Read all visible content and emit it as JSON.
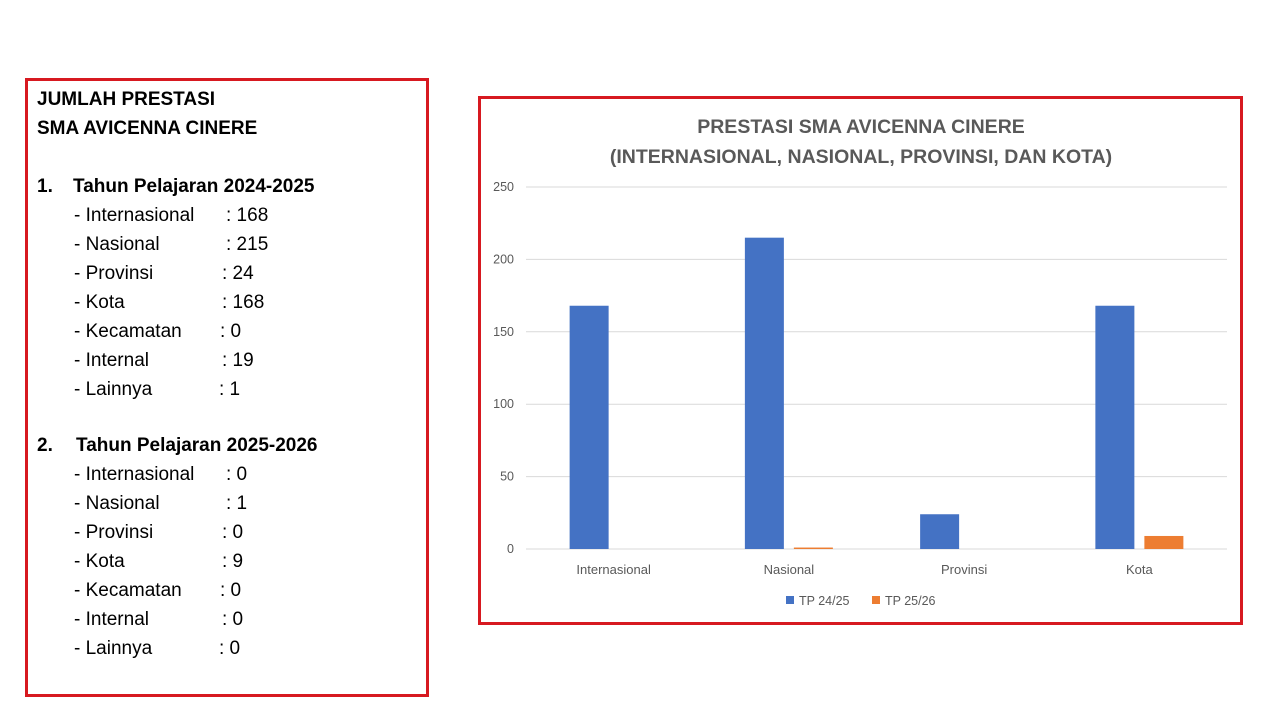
{
  "summary": {
    "title_line1": "JUMLAH PRESTASI",
    "title_line2": "SMA AVICENNA CINERE",
    "sections": [
      {
        "number": "1.",
        "title": "Tahun Pelajaran 2024-2025",
        "items": [
          {
            "label": "- Internasional",
            "value": ": 168"
          },
          {
            "label": "- Nasional",
            "value": ": 215"
          },
          {
            "label": "- Provinsi",
            "value": ": 24"
          },
          {
            "label": "- Kota",
            "value": ": 168"
          },
          {
            "label": "- Kecamatan",
            "value": ": 0"
          },
          {
            "label": "- Internal",
            "value": ": 19"
          },
          {
            "label": "- Lainnya",
            "value": ": 1"
          }
        ]
      },
      {
        "number": "2.",
        "title": "Tahun Pelajaran 2025-2026",
        "items": [
          {
            "label": "- Internasional",
            "value": ": 0"
          },
          {
            "label": "- Nasional",
            "value": ": 1"
          },
          {
            "label": "- Provinsi",
            "value": ": 0"
          },
          {
            "label": "- Kota",
            "value": ": 9"
          },
          {
            "label": "- Kecamatan",
            "value": ": 0"
          },
          {
            "label": "- Internal",
            "value": ": 0"
          },
          {
            "label": "- Lainnya",
            "value": ": 0"
          }
        ]
      }
    ]
  },
  "chart_data": {
    "type": "bar",
    "title": [
      "PRESTASI SMA AVICENNA CINERE",
      "(INTERNASIONAL, NASIONAL, PROVINSI, DAN KOTA)"
    ],
    "categories": [
      "Internasional",
      "Nasional",
      "Provinsi",
      "Kota"
    ],
    "series": [
      {
        "name": "TP 24/25",
        "values": [
          168,
          215,
          24,
          168
        ],
        "color": "#4472c4"
      },
      {
        "name": "TP 25/26",
        "values": [
          0,
          1,
          0,
          9
        ],
        "color": "#ed7d31"
      }
    ],
    "ylim": [
      0,
      250
    ],
    "yticks": [
      0,
      50,
      100,
      150,
      200,
      250
    ],
    "grid": true,
    "legend": "bottom",
    "xlabel": "",
    "ylabel": ""
  }
}
